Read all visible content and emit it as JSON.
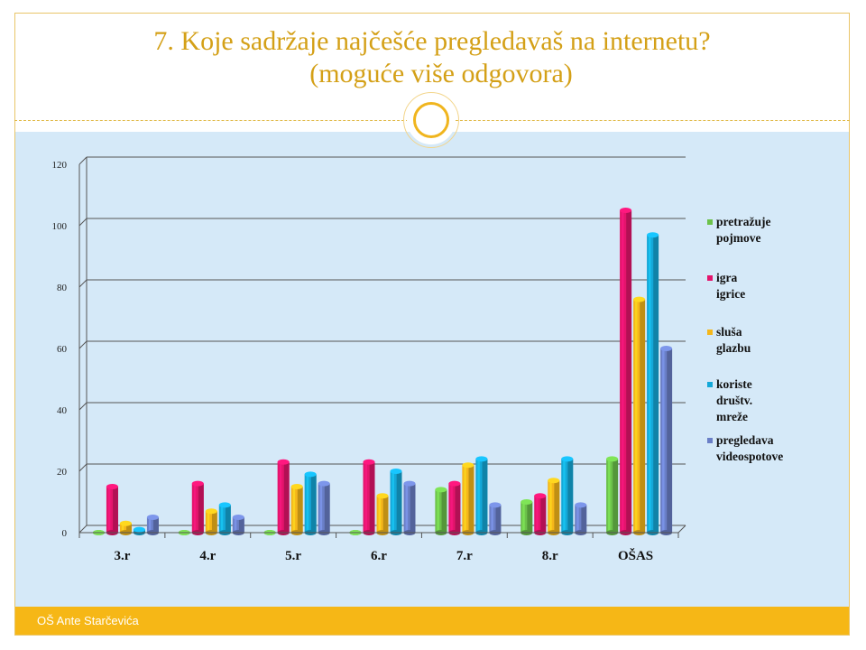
{
  "slide": {
    "title_line1": "7. Koje sadržaje najčešće pregledavaš na internetu?",
    "title_line2": "(moguće više odgovora)",
    "footer": "OŠ Ante Starčevića"
  },
  "chart_data": {
    "type": "bar",
    "categories": [
      "3.r",
      "4.r",
      "5.r",
      "6.r",
      "7.r",
      "8.r",
      "OŠAS"
    ],
    "ylim": [
      0,
      120
    ],
    "yticks": [
      0,
      20,
      40,
      60,
      80,
      100,
      120
    ],
    "grid": true,
    "legend_position": "right",
    "series": [
      {
        "name": "pretražuje pojmove",
        "label_lines": [
          "pretražuje",
          "pojmove"
        ],
        "color": "#6cc24a",
        "values": [
          0,
          0,
          0,
          0,
          14,
          10,
          24
        ]
      },
      {
        "name": "igra igrice",
        "label_lines": [
          "igra",
          "igrice"
        ],
        "color": "#e4146c",
        "values": [
          15,
          16,
          23,
          23,
          16,
          12,
          105
        ]
      },
      {
        "name": "sluša glazbu",
        "label_lines": [
          "sluša",
          "glazbu"
        ],
        "color": "#f5b71a",
        "values": [
          3,
          7,
          15,
          12,
          22,
          17,
          76
        ]
      },
      {
        "name": "koriste društv. mreže",
        "label_lines": [
          "koriste",
          "društv.",
          "mreže"
        ],
        "color": "#14a8d8",
        "values": [
          1,
          9,
          19,
          20,
          24,
          24,
          97
        ]
      },
      {
        "name": "pregledava videospotove",
        "label_lines": [
          "pregledava",
          "videospotove"
        ],
        "color": "#6a7fc7",
        "values": [
          5,
          5,
          16,
          16,
          9,
          9,
          60
        ]
      }
    ]
  }
}
